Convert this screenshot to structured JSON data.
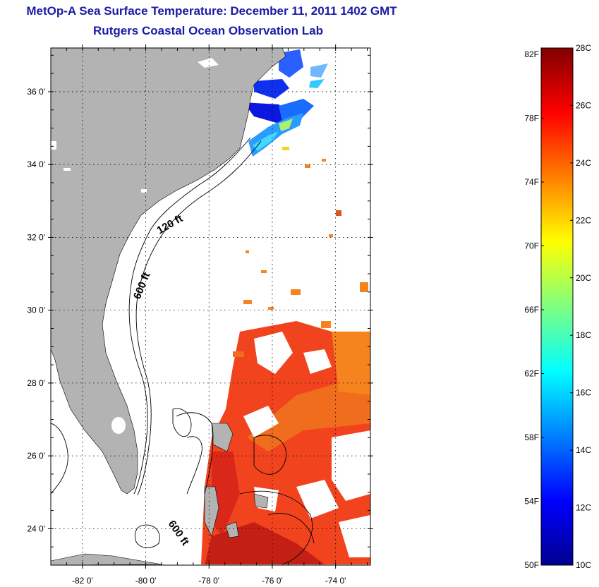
{
  "header": {
    "title": "MetOp-A Sea Surface Temperature:  December 11, 2011 1402 GMT",
    "subtitle": "Rutgers Coastal Ocean Observation Lab"
  },
  "map": {
    "lat_ticks": [
      "36 0'",
      "34 0'",
      "32 0'",
      "30 0'",
      "28 0'",
      "26 0'",
      "24 0'"
    ],
    "lon_ticks": [
      "-82 0'",
      "-80 0'",
      "-78 0'",
      "-76 0'",
      "-74 0'"
    ],
    "lat_range": [
      23,
      37.2
    ],
    "lon_range": [
      -83,
      -72.9
    ],
    "contour_labels": [
      "120 ft",
      "600 ft",
      "600 ft"
    ],
    "colors": {
      "land": "#b3b3b3",
      "water": "#ffffff",
      "border": "#000000"
    }
  },
  "colorbar": {
    "fahrenheit_labels": [
      "82F",
      "78F",
      "74F",
      "70F",
      "66F",
      "62F",
      "58F",
      "54F",
      "50F"
    ],
    "celsius_labels": [
      "28C",
      "26C",
      "24C",
      "22C",
      "20C",
      "18C",
      "16C",
      "14C",
      "12C",
      "10C"
    ],
    "range_c": [
      10,
      28
    ],
    "colormap": "jet"
  }
}
